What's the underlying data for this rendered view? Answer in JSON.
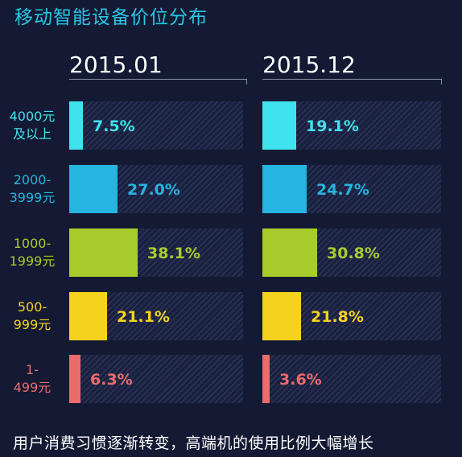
{
  "title": "移动智能设备价位分布",
  "footer": "用户消费习惯逐渐转变，高端机的使用比例大幅增长",
  "chart_data": {
    "type": "bar",
    "title": "移动智能设备价位分布",
    "categories": [
      "4000元及以上",
      "2000-3999元",
      "1000-1999元",
      "500-999元",
      "1-499元"
    ],
    "category_lines": [
      [
        "4000元",
        "及以上"
      ],
      [
        "2000-",
        "3999元"
      ],
      [
        "1000-",
        "1999元"
      ],
      [
        "500-",
        "999元"
      ],
      [
        "1-",
        "499元"
      ]
    ],
    "category_colors": [
      "#3ee3ee",
      "#26b4e0",
      "#a8cc2c",
      "#f4d21e",
      "#ec6b6b"
    ],
    "label_colors": [
      "#3ee3ee",
      "#26b4e0",
      "#a8cc2c",
      "#f4d21e",
      "#ec6b6b"
    ],
    "series": [
      {
        "name": "2015.01",
        "values": [
          7.5,
          27.0,
          38.1,
          21.1,
          6.3
        ],
        "labels": [
          "7.5%",
          "27.0%",
          "38.1%",
          "21.1%",
          "6.3%"
        ]
      },
      {
        "name": "2015.12",
        "values": [
          19.1,
          24.7,
          30.8,
          21.8,
          3.6
        ],
        "labels": [
          "19.1%",
          "24.7%",
          "30.8%",
          "21.8%",
          "3.6%"
        ]
      }
    ],
    "unit": "%",
    "orientation": "horizontal",
    "grid": false
  }
}
